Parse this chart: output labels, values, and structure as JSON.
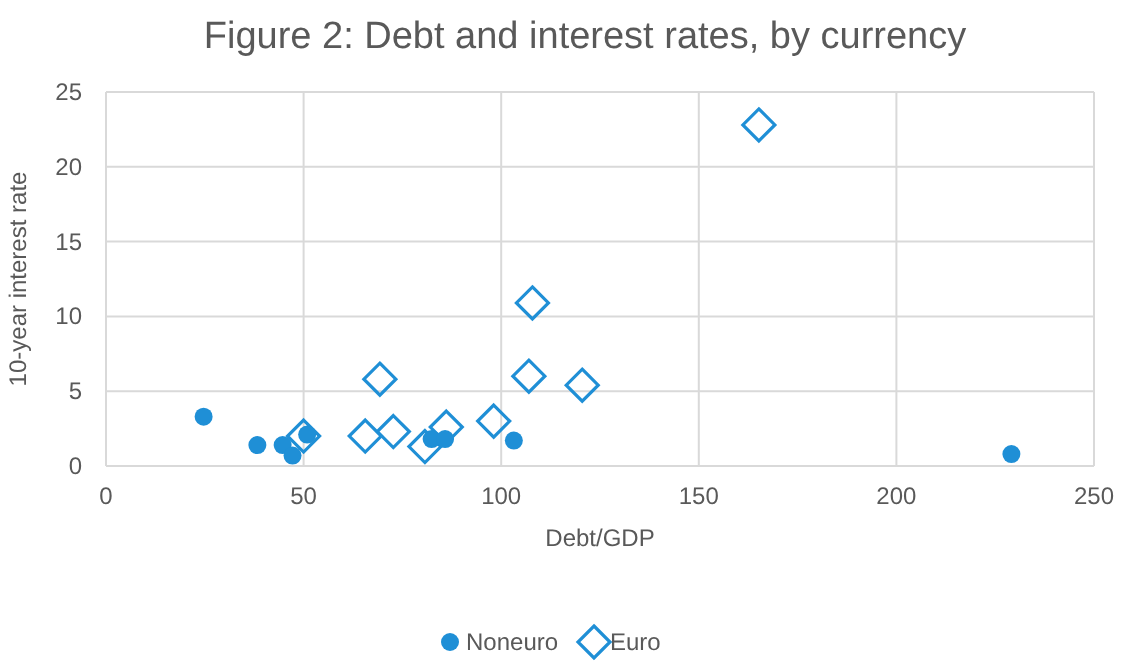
{
  "chart_data": {
    "type": "scatter",
    "title": "Figure 2: Debt and interest rates, by currency",
    "xlabel": "Debt/GDP",
    "ylabel": "10-year interest rate",
    "xlim": [
      0,
      250
    ],
    "xticks": [
      0,
      50,
      100,
      150,
      200,
      250
    ],
    "ylim": [
      0,
      25
    ],
    "yticks": [
      0,
      5,
      10,
      15,
      20,
      25
    ],
    "grid": true,
    "legend": "bottom",
    "series": [
      {
        "name": "Noneuro",
        "color": "#1f8fd6",
        "marker": "circle",
        "x": [
          24.7,
          38.3,
          44.7,
          47.2,
          50.9,
          82.4,
          85.8,
          103.2,
          229.1
        ],
        "values": [
          3.3,
          1.4,
          1.4,
          0.7,
          2.1,
          1.8,
          1.8,
          1.7,
          0.8
        ]
      },
      {
        "name": "Euro",
        "color": "#1f8fd6",
        "marker": "diamond",
        "x": [
          50.0,
          65.6,
          72.7,
          69.3,
          80.7,
          86.1,
          98.1,
          107.0,
          120.5,
          107.9,
          165.2
        ],
        "values": [
          2.0,
          2.0,
          2.3,
          5.8,
          1.3,
          2.6,
          3.0,
          6.0,
          5.4,
          10.9,
          22.8
        ]
      }
    ]
  }
}
